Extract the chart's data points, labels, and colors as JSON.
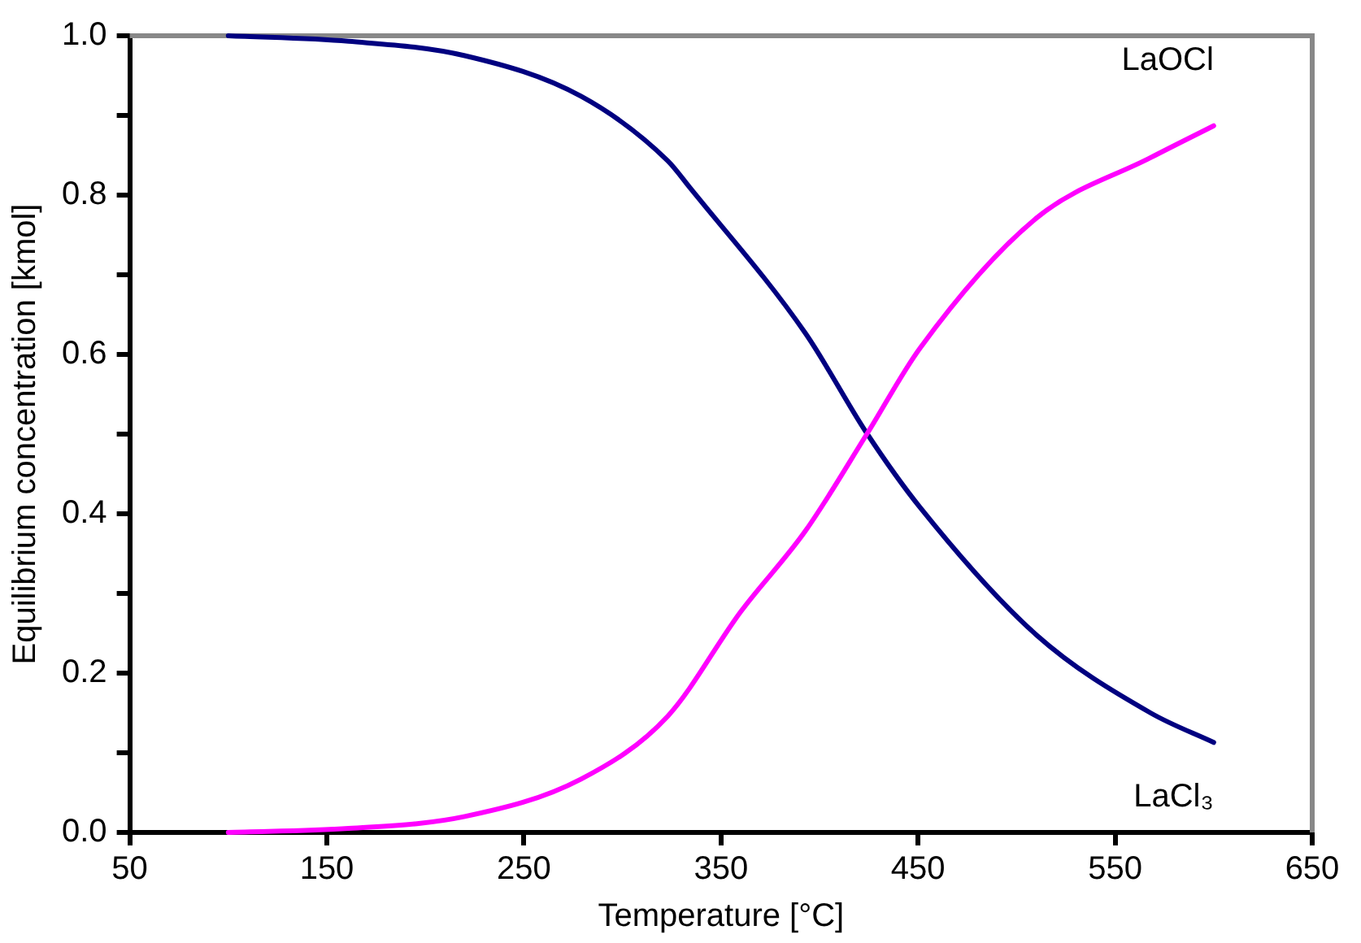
{
  "chart_data": {
    "type": "line",
    "xlabel": "Temperature [°C]",
    "ylabel": "Equilibrium concentration [kmol]",
    "series": [
      {
        "name": "LaOCl",
        "color": "#ff00ff",
        "x": [
          100,
          161,
          220,
          279,
          323,
          360,
          393,
          424,
          451,
          510,
          568,
          600
        ],
        "values": [
          0,
          0.005,
          0.02,
          0.067,
          0.146,
          0.277,
          0.379,
          0.5,
          0.608,
          0.771,
          0.847,
          0.887
        ]
      },
      {
        "name": "LaCl₃",
        "color": "#000080",
        "x": [
          100,
          161,
          220,
          279,
          323,
          334,
          393,
          424,
          451,
          510,
          568,
          600
        ],
        "values": [
          1,
          0.993,
          0.975,
          0.924,
          0.843,
          0.81,
          0.626,
          0.501,
          0.408,
          0.248,
          0.15,
          0.113
        ]
      }
    ],
    "xlim": [
      50,
      650
    ],
    "xticks": [
      50,
      150,
      250,
      350,
      450,
      550,
      650
    ],
    "ylim": [
      0,
      1
    ],
    "yticks": [
      {
        "value": 0,
        "label": "0.0"
      },
      {
        "value": 0.1,
        "label": null
      },
      {
        "value": 0.2,
        "label": "0.2"
      },
      {
        "value": 0.3,
        "label": null
      },
      {
        "value": 0.4,
        "label": "0.4"
      },
      {
        "value": 0.5,
        "label": null
      },
      {
        "value": 0.6,
        "label": "0.6"
      },
      {
        "value": 0.7,
        "label": null
      },
      {
        "value": 0.8,
        "label": "0.8"
      },
      {
        "value": 0.9,
        "label": null
      },
      {
        "value": 1,
        "label": "1.0"
      }
    ],
    "grid": false,
    "legend": false,
    "marker": "none",
    "line_style": "solid"
  }
}
